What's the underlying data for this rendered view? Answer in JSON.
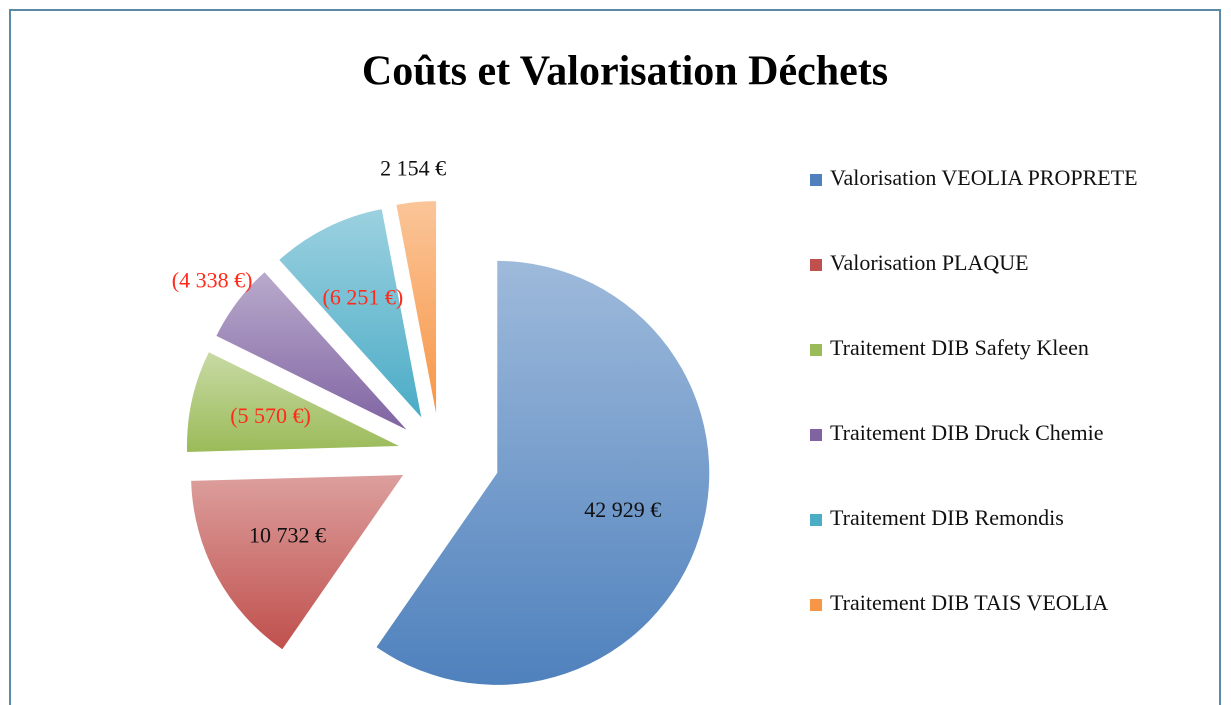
{
  "chart_data": {
    "type": "pie",
    "title": "Coûts et Valorisation Déchets",
    "categories": [
      "Valorisation VEOLIA PROPRETE",
      "Valorisation PLAQUE",
      "Traitement DIB Safety Kleen",
      "Traitement DIB Druck Chemie",
      "Traitement DIB Remondis",
      "Traitement DIB TAIS VEOLIA"
    ],
    "values": [
      42929,
      10732,
      -5570,
      -4338,
      -6251,
      2154
    ],
    "value_labels": [
      "42 929 €",
      "10 732 €",
      "(5 570 €)",
      "(4 338 €)",
      "(6 251 €)",
      "2 154 €"
    ],
    "colors": [
      "#4f81bd",
      "#c0504d",
      "#9bbb59",
      "#8064a2",
      "#4bacc6",
      "#f79646"
    ],
    "legend": "right"
  }
}
